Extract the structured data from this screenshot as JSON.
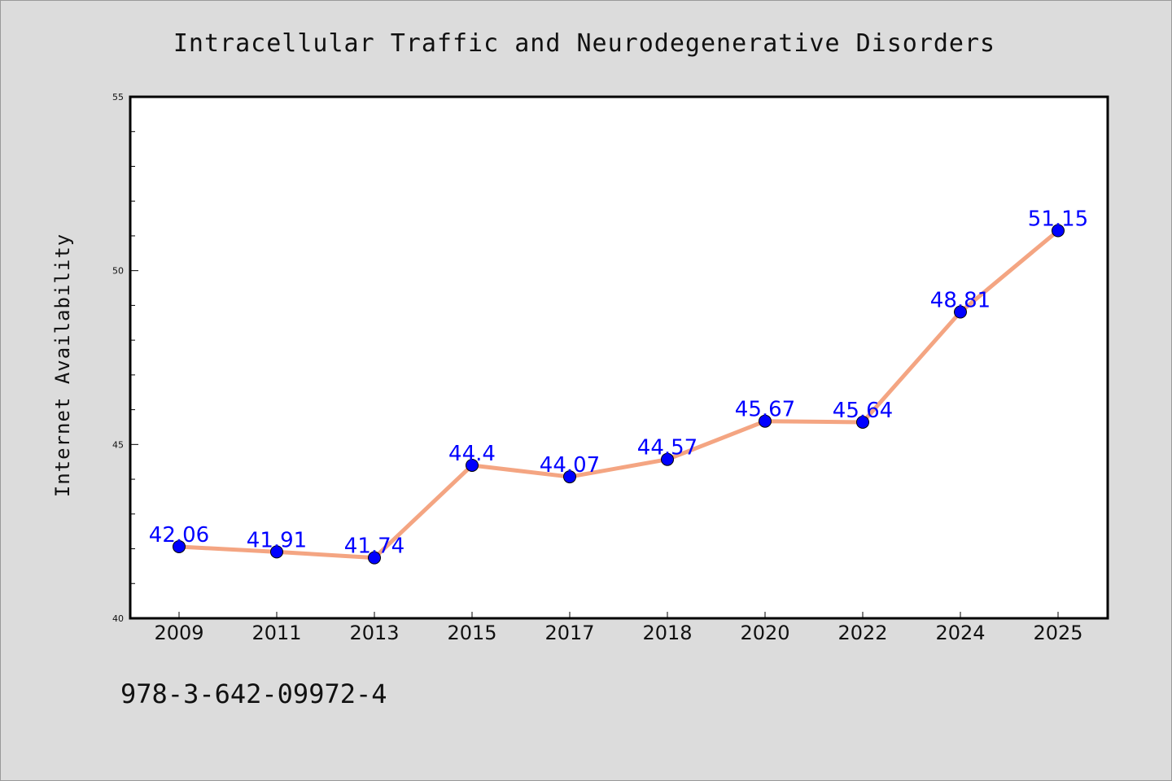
{
  "chart_data": {
    "type": "line",
    "title": "Intracellular Traffic and Neurodegenerative Disorders",
    "xlabel": "",
    "ylabel": "Internet Availability",
    "categories": [
      "2009",
      "2011",
      "2013",
      "2015",
      "2017",
      "2018",
      "2020",
      "2022",
      "2024",
      "2025"
    ],
    "series": [
      {
        "values": [
          42.06,
          41.91,
          41.74,
          44.4,
          44.07,
          44.57,
          45.67,
          45.64,
          48.81,
          51.15
        ],
        "labels": [
          "42.06",
          "41.91",
          "41.74",
          "44.4",
          "44.07",
          "44.57",
          "45.67",
          "45.64",
          "48.81",
          "51.15"
        ]
      }
    ],
    "ylim": [
      40,
      55
    ],
    "yticks": [
      "40",
      "45",
      "50",
      "55"
    ],
    "grid": false,
    "colors": {
      "line": "#f4a582",
      "marker": "#0000ff",
      "data_label": "#0000ff",
      "plot_background": "#ffffff",
      "page_background": "#dcdcdc"
    }
  },
  "footnote": "978-3-642-09972-4"
}
